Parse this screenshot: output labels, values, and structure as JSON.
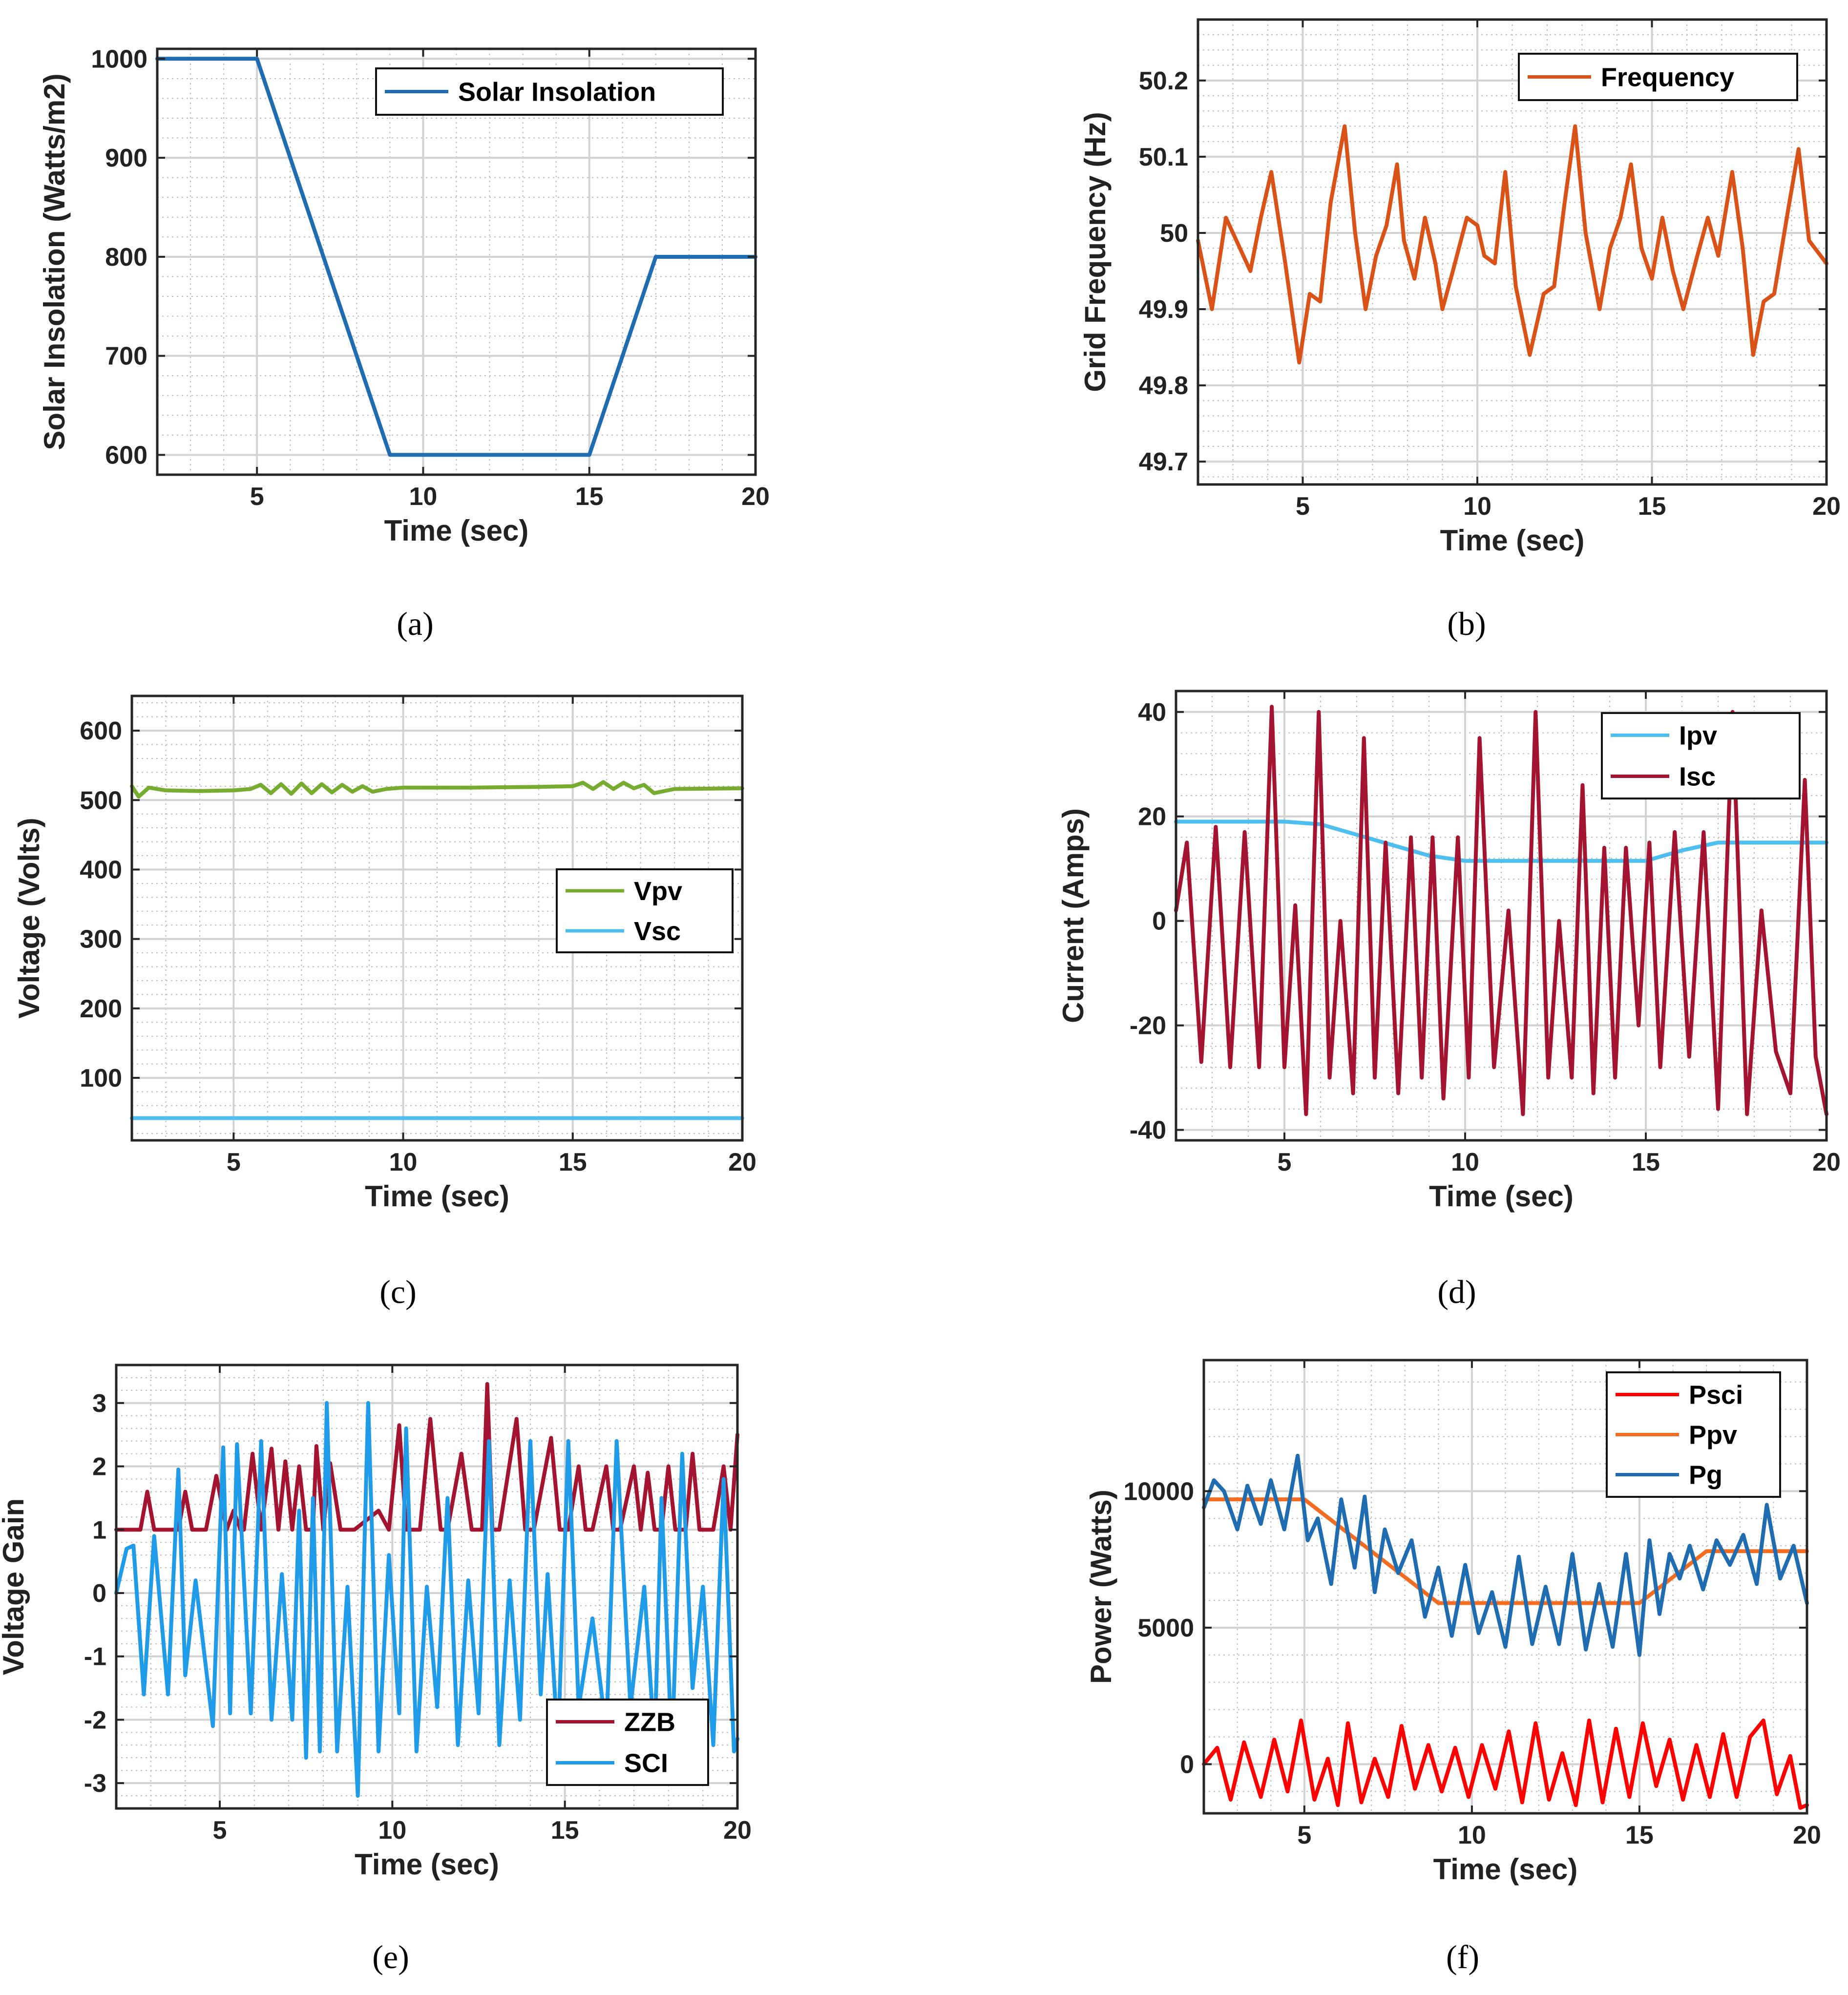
{
  "chart_data": [
    {
      "id": "a",
      "type": "line",
      "caption": "(a)",
      "xlabel": "Time (sec)",
      "ylabel": "Solar Insolation (Watts/m2)",
      "xlim": [
        2,
        20
      ],
      "ylim": [
        580,
        1010
      ],
      "xticks": [
        5,
        10,
        15,
        20
      ],
      "yticks": [
        600,
        700,
        800,
        900,
        1000
      ],
      "legend_position": "top-right",
      "series": [
        {
          "name": "Solar Insolation",
          "color": "#1f6cb0",
          "x": [
            2,
            5,
            9,
            15,
            17,
            20
          ],
          "y": [
            1000,
            1000,
            600,
            600,
            800,
            800
          ]
        }
      ]
    },
    {
      "id": "b",
      "type": "line",
      "caption": "(b)",
      "xlabel": "Time (sec)",
      "ylabel": "Grid Frequency (Hz)",
      "xlim": [
        2,
        20
      ],
      "ylim": [
        49.67,
        50.28
      ],
      "xticks": [
        5,
        10,
        15,
        20
      ],
      "yticks": [
        49.7,
        49.8,
        49.9,
        50,
        50.1,
        50.2
      ],
      "legend_position": "top-right",
      "series": [
        {
          "name": "Frequency",
          "color": "#d95319",
          "x": [
            2.0,
            2.4,
            2.8,
            3.1,
            3.5,
            3.8,
            4.1,
            4.5,
            4.9,
            5.2,
            5.5,
            5.8,
            6.2,
            6.5,
            6.8,
            7.1,
            7.4,
            7.7,
            7.9,
            8.2,
            8.5,
            8.8,
            9.0,
            9.3,
            9.7,
            10.0,
            10.2,
            10.5,
            10.8,
            11.1,
            11.5,
            11.9,
            12.2,
            12.5,
            12.8,
            13.1,
            13.5,
            13.8,
            14.1,
            14.4,
            14.7,
            15.0,
            15.3,
            15.6,
            15.9,
            16.3,
            16.6,
            16.9,
            17.3,
            17.6,
            17.9,
            18.2,
            18.5,
            18.9,
            19.2,
            19.5,
            20.0
          ],
          "y": [
            49.99,
            49.9,
            50.02,
            49.99,
            49.95,
            50.02,
            50.08,
            49.96,
            49.83,
            49.92,
            49.91,
            50.04,
            50.14,
            50.0,
            49.9,
            49.97,
            50.01,
            50.09,
            49.99,
            49.94,
            50.02,
            49.96,
            49.9,
            49.95,
            50.02,
            50.01,
            49.97,
            49.96,
            50.08,
            49.93,
            49.84,
            49.92,
            49.93,
            50.04,
            50.14,
            50.0,
            49.9,
            49.98,
            50.02,
            50.09,
            49.98,
            49.94,
            50.02,
            49.95,
            49.9,
            49.97,
            50.02,
            49.97,
            50.08,
            49.98,
            49.84,
            49.91,
            49.92,
            50.03,
            50.11,
            49.99,
            49.96
          ]
        }
      ]
    },
    {
      "id": "c",
      "type": "line",
      "caption": "(c)",
      "xlabel": "Time (sec)",
      "ylabel": "Voltage (Volts)",
      "xlim": [
        2,
        20
      ],
      "ylim": [
        10,
        650
      ],
      "xticks": [
        5,
        10,
        15,
        20
      ],
      "yticks": [
        100,
        200,
        300,
        400,
        500,
        600
      ],
      "legend_position": "center-right",
      "series": [
        {
          "name": "Vpv",
          "color": "#77ac30",
          "x": [
            2.0,
            2.2,
            2.5,
            3.0,
            4.0,
            5.0,
            5.5,
            5.8,
            6.1,
            6.4,
            6.7,
            7.0,
            7.3,
            7.6,
            7.9,
            8.2,
            8.5,
            8.8,
            9.1,
            9.5,
            10.0,
            12.0,
            14.0,
            15.0,
            15.3,
            15.6,
            15.9,
            16.2,
            16.5,
            16.8,
            17.1,
            17.4,
            18.0,
            20.0
          ],
          "y": [
            520,
            505,
            518,
            514,
            513,
            514,
            516,
            522,
            510,
            523,
            509,
            524,
            510,
            523,
            511,
            522,
            512,
            520,
            512,
            516,
            518,
            518,
            519,
            520,
            525,
            516,
            526,
            516,
            525,
            517,
            522,
            510,
            516,
            517
          ]
        },
        {
          "name": "Vsc",
          "color": "#4dbeee",
          "x": [
            2,
            20
          ],
          "y": [
            42,
            42
          ]
        }
      ]
    },
    {
      "id": "d",
      "type": "line",
      "caption": "(d)",
      "xlabel": "Time (sec)",
      "ylabel": "Current (Amps)",
      "xlim": [
        2,
        20
      ],
      "ylim": [
        -42,
        44
      ],
      "xticks": [
        5,
        10,
        15,
        20
      ],
      "yticks": [
        -40,
        -20,
        0,
        20,
        40
      ],
      "legend_position": "top-right",
      "series": [
        {
          "name": "Ipv",
          "color": "#4dbeee",
          "x": [
            2,
            3,
            5,
            6,
            7,
            8,
            9,
            10,
            12,
            14,
            15,
            16,
            17,
            18,
            20
          ],
          "y": [
            19,
            19,
            19,
            18.5,
            16.5,
            14.5,
            12.5,
            11.5,
            11.5,
            11.5,
            11.5,
            13.5,
            15,
            15,
            15
          ]
        },
        {
          "name": "Isc",
          "color": "#a2142f",
          "x": [
            2.0,
            2.3,
            2.7,
            3.1,
            3.5,
            3.9,
            4.3,
            4.65,
            5.0,
            5.3,
            5.6,
            5.95,
            6.25,
            6.55,
            6.9,
            7.2,
            7.5,
            7.8,
            8.15,
            8.5,
            8.8,
            9.1,
            9.4,
            9.8,
            10.1,
            10.4,
            10.8,
            11.2,
            11.6,
            11.95,
            12.3,
            12.6,
            12.95,
            13.25,
            13.55,
            13.85,
            14.15,
            14.45,
            14.8,
            15.1,
            15.4,
            15.8,
            16.2,
            16.6,
            17.0,
            17.4,
            17.8,
            18.2,
            18.6,
            19.0,
            19.4,
            19.7,
            20.0
          ],
          "y": [
            2,
            15,
            -27,
            18,
            -28,
            17,
            -28,
            41,
            -28,
            3,
            -37,
            40,
            -30,
            0,
            -33,
            35,
            -30,
            15,
            -33,
            16,
            -30,
            16,
            -34,
            16,
            -30,
            35,
            -28,
            2,
            -37,
            40,
            -30,
            0,
            -30,
            26,
            -33,
            14,
            -30,
            14,
            -20,
            15,
            -28,
            17,
            -26,
            17,
            -36,
            40,
            -37,
            2,
            -25,
            -33,
            27,
            -26,
            -37
          ]
        }
      ]
    },
    {
      "id": "e",
      "type": "line",
      "caption": "(e)",
      "xlabel": "Time (sec)",
      "ylabel": "Voltage Gain",
      "xlim": [
        2,
        20
      ],
      "ylim": [
        -3.4,
        3.6
      ],
      "xticks": [
        5,
        10,
        15,
        20
      ],
      "yticks": [
        -3,
        -2,
        -1,
        0,
        1,
        2,
        3
      ],
      "legend_position": "bottom-right",
      "series": [
        {
          "name": "ZZB",
          "color": "#a2142f",
          "x": [
            2.0,
            2.7,
            2.9,
            3.1,
            3.8,
            4.0,
            4.2,
            4.6,
            4.9,
            5.2,
            5.4,
            5.6,
            5.7,
            5.95,
            6.2,
            6.5,
            6.7,
            6.9,
            7.1,
            7.3,
            7.5,
            7.7,
            7.8,
            8.0,
            8.2,
            8.5,
            8.7,
            8.9,
            9.6,
            9.9,
            10.2,
            10.4,
            10.8,
            11.1,
            11.4,
            11.6,
            12.0,
            12.3,
            12.6,
            12.75,
            12.9,
            13.1,
            13.6,
            13.85,
            14.1,
            14.6,
            14.85,
            15.1,
            15.4,
            15.6,
            15.8,
            16.2,
            16.4,
            16.6,
            17.0,
            17.2,
            17.4,
            17.6,
            17.8,
            18.0,
            18.2,
            18.5,
            18.7,
            18.9,
            19.3,
            19.6,
            19.8,
            20.0
          ],
          "y": [
            1,
            1,
            1.6,
            1,
            1,
            1.6,
            1,
            1,
            1.85,
            1,
            1.3,
            1,
            1,
            2.2,
            1,
            2.28,
            1,
            2.08,
            1,
            2.0,
            1,
            1,
            2.32,
            1,
            2.05,
            1,
            1,
            1,
            1.3,
            1,
            2.65,
            1,
            1,
            2.75,
            1,
            1,
            2.2,
            1,
            1,
            3.3,
            1,
            1,
            2.75,
            1,
            1,
            2.45,
            1,
            1,
            2.0,
            1,
            1,
            2.0,
            1,
            1,
            2.0,
            1,
            1.9,
            1,
            1,
            2.0,
            1,
            1,
            2.2,
            1,
            1,
            2.0,
            1,
            2.5
          ]
        },
        {
          "name": "SCI",
          "color": "#1f9be8",
          "x": [
            2.0,
            2.3,
            2.5,
            2.8,
            3.1,
            3.5,
            3.8,
            4.0,
            4.3,
            4.8,
            5.1,
            5.3,
            5.5,
            5.9,
            6.2,
            6.5,
            6.8,
            7.1,
            7.3,
            7.5,
            7.7,
            7.9,
            8.1,
            8.4,
            8.7,
            9.0,
            9.3,
            9.6,
            9.9,
            10.2,
            10.4,
            10.7,
            11.0,
            11.3,
            11.6,
            11.9,
            12.2,
            12.5,
            12.8,
            13.1,
            13.4,
            13.7,
            14.0,
            14.3,
            14.5,
            14.8,
            15.1,
            15.4,
            15.8,
            16.2,
            16.5,
            16.9,
            17.3,
            17.6,
            17.8,
            18.1,
            18.4,
            18.7,
            19.0,
            19.3,
            19.6,
            19.9,
            20.0
          ],
          "y": [
            0.0,
            0.7,
            0.75,
            -1.6,
            0.9,
            -1.6,
            1.95,
            -1.3,
            0.2,
            -2.1,
            2.3,
            -1.9,
            2.35,
            -1.9,
            2.4,
            -2.0,
            0.3,
            -2.0,
            1.3,
            -2.6,
            1.5,
            -2.5,
            3.0,
            -2.5,
            0.1,
            -3.2,
            3.0,
            -2.5,
            0.6,
            -1.9,
            2.6,
            -2.5,
            0.1,
            -1.8,
            1.5,
            -2.4,
            0.2,
            -1.9,
            2.4,
            -2.4,
            0.2,
            -2.0,
            2.4,
            -1.6,
            0.3,
            -2.4,
            2.4,
            -1.8,
            -0.4,
            -2.2,
            2.4,
            -1.8,
            0.1,
            -2.4,
            1.5,
            -2.5,
            2.2,
            -1.5,
            0.1,
            -2.4,
            1.8,
            -2.5,
            -2.3
          ]
        }
      ]
    },
    {
      "id": "f",
      "type": "line",
      "caption": "(f)",
      "xlabel": "Time (sec)",
      "ylabel": "Power (Watts)",
      "xlim": [
        2,
        20
      ],
      "ylim": [
        -1800,
        14800
      ],
      "xticks": [
        5,
        10,
        15,
        20
      ],
      "yticks": [
        0,
        5000,
        10000
      ],
      "legend_position": "top-right",
      "series": [
        {
          "name": "Psci",
          "color": "#ff0000",
          "x": [
            2.0,
            2.4,
            2.8,
            3.2,
            3.7,
            4.1,
            4.5,
            4.9,
            5.3,
            5.7,
            6.0,
            6.3,
            6.7,
            7.1,
            7.5,
            7.9,
            8.3,
            8.7,
            9.1,
            9.5,
            9.9,
            10.3,
            10.7,
            11.1,
            11.5,
            11.9,
            12.3,
            12.7,
            13.1,
            13.5,
            13.9,
            14.3,
            14.7,
            15.1,
            15.5,
            15.9,
            16.3,
            16.7,
            17.1,
            17.5,
            17.9,
            18.3,
            18.7,
            19.1,
            19.5,
            19.8,
            20.0
          ],
          "y": [
            0,
            600,
            -1300,
            800,
            -1200,
            900,
            -1000,
            1600,
            -1300,
            200,
            -1500,
            1500,
            -1400,
            200,
            -1200,
            1400,
            -900,
            700,
            -1000,
            600,
            -1200,
            700,
            -900,
            1200,
            -1400,
            1500,
            -1300,
            400,
            -1500,
            1600,
            -1400,
            1300,
            -1200,
            1500,
            -800,
            900,
            -1300,
            700,
            -1200,
            1100,
            -1200,
            1000,
            1600,
            -1100,
            300,
            -1600,
            -1500
          ]
        },
        {
          "name": "Ppv",
          "color": "#f26c21",
          "x": [
            2,
            5,
            9,
            15,
            17,
            20
          ],
          "y": [
            9700,
            9700,
            5900,
            5900,
            7800,
            7800
          ]
        },
        {
          "name": "Pg",
          "color": "#1f6cb0",
          "x": [
            2.0,
            2.3,
            2.6,
            3.0,
            3.3,
            3.7,
            4.0,
            4.4,
            4.8,
            5.1,
            5.4,
            5.8,
            6.1,
            6.5,
            6.8,
            7.1,
            7.4,
            7.8,
            8.2,
            8.6,
            9.0,
            9.4,
            9.8,
            10.2,
            10.6,
            11.0,
            11.4,
            11.8,
            12.2,
            12.6,
            13.0,
            13.4,
            13.8,
            14.2,
            14.6,
            15.0,
            15.3,
            15.6,
            15.9,
            16.2,
            16.5,
            16.9,
            17.3,
            17.7,
            18.1,
            18.5,
            18.8,
            19.2,
            19.6,
            20.0
          ],
          "y": [
            9400,
            10400,
            10000,
            8600,
            10200,
            8800,
            10400,
            8600,
            11300,
            8200,
            9000,
            6600,
            9700,
            7200,
            9800,
            6300,
            8600,
            7000,
            8200,
            5400,
            7200,
            4700,
            7300,
            4800,
            6300,
            4300,
            7600,
            4400,
            6500,
            4400,
            7700,
            4200,
            6600,
            4300,
            7700,
            4000,
            8200,
            5500,
            7700,
            6800,
            8000,
            6400,
            8200,
            7300,
            8400,
            6600,
            9500,
            6800,
            8000,
            5900
          ]
        }
      ]
    }
  ]
}
